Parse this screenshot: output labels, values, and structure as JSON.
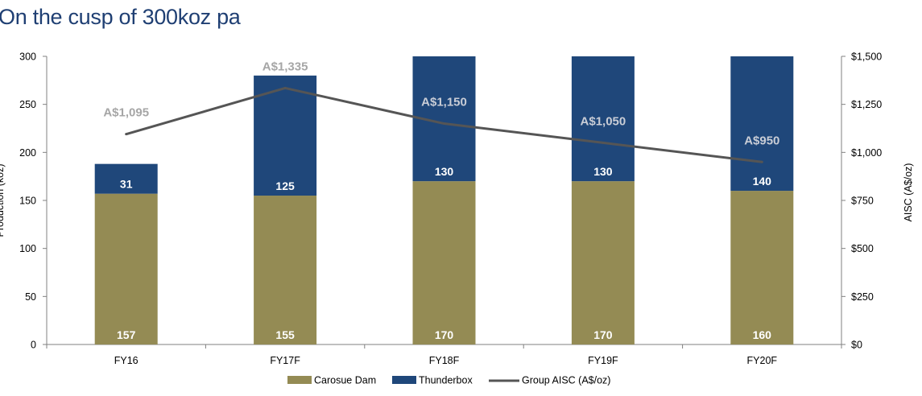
{
  "title": "On the cusp of 300koz pa",
  "chart_data": {
    "type": "bar",
    "stacked": true,
    "categories": [
      "FY16",
      "FY17F",
      "FY18F",
      "FY19F",
      "FY20F"
    ],
    "series": [
      {
        "name": "Carosue Dam",
        "values": [
          157,
          155,
          170,
          170,
          160
        ],
        "color": "#948b54"
      },
      {
        "name": "Thunderbox",
        "values": [
          31,
          125,
          130,
          130,
          140
        ],
        "color": "#1f477a"
      }
    ],
    "line_series": {
      "name": "Group AISC (A$/oz)",
      "values": [
        1095,
        1335,
        1150,
        1050,
        950
      ],
      "labels": [
        "A$1,095",
        "A$1,335",
        "A$1,150",
        "A$1,050",
        "A$950"
      ],
      "color": "#555555",
      "axis": "right"
    },
    "ylabel": "Production (koz)",
    "ylim": [
      0,
      300
    ],
    "yticks": [
      0,
      50,
      100,
      150,
      200,
      250,
      300
    ],
    "ylabel_right": "AISC (A$/oz)",
    "ylim_right": [
      0,
      1500
    ],
    "yticks_right": [
      "$0",
      "$250",
      "$500",
      "$750",
      "$1,000",
      "$1,250",
      "$1,500"
    ],
    "legend_position": "bottom",
    "grid": false
  }
}
